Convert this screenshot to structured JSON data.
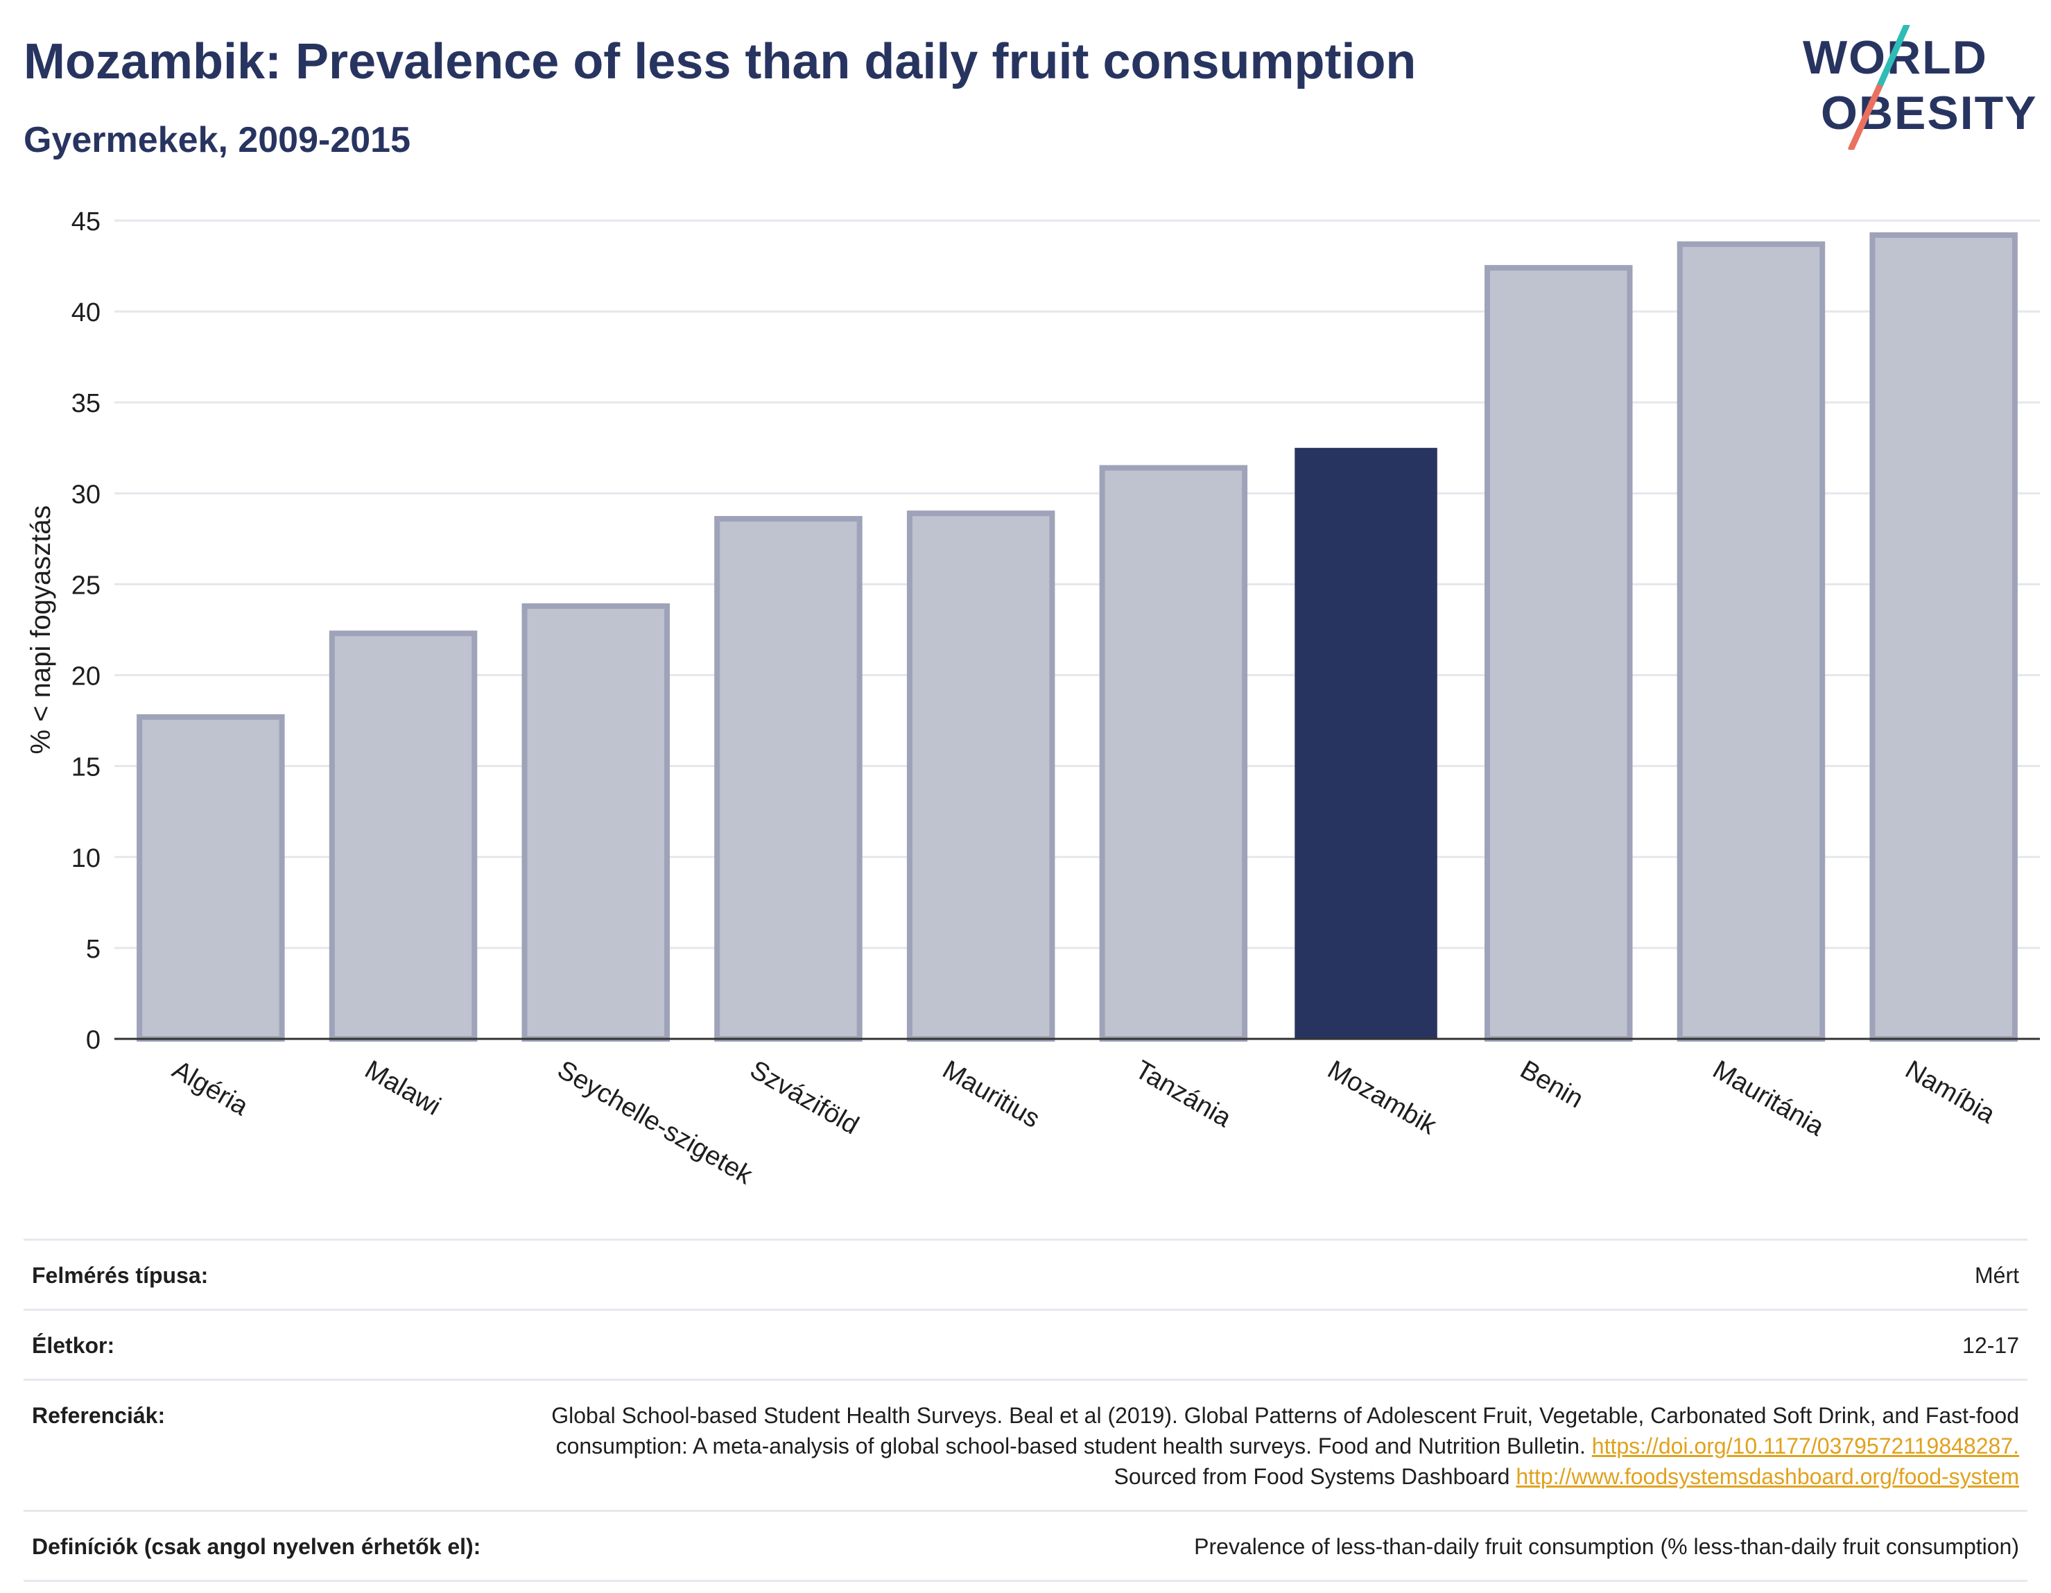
{
  "header": {
    "title": "Mozambik: Prevalence of less than daily fruit consumption",
    "subtitle": "Gyermekek, 2009-2015"
  },
  "logo": {
    "line1": "WORLD",
    "line2": "OBESITY"
  },
  "colors": {
    "highlight_bar": "#283460",
    "other_bar_fill": "#bfc2cf",
    "other_bar_stroke": "#9ea3b9",
    "text_dark": "#283460",
    "link": "#e0a21d",
    "logo_teal": "#2ebcb7",
    "logo_coral": "#e9715f"
  },
  "chart_data": {
    "type": "bar",
    "title": "Mozambik: Prevalence of less than daily fruit consumption",
    "subtitle": "Gyermekek, 2009-2015",
    "xlabel": "",
    "ylabel": "% < napi fogyasztás",
    "ylim": [
      0,
      45
    ],
    "yticks": [
      0,
      5,
      10,
      15,
      20,
      25,
      30,
      35,
      40,
      45
    ],
    "grid": true,
    "highlight": "Mozambik",
    "categories": [
      "Algéria",
      "Malawi",
      "Seychelle-szigetek",
      "Szváziföld",
      "Mauritius",
      "Tanzánia",
      "Mozambik",
      "Benin",
      "Mauritánia",
      "Namíbia"
    ],
    "values": [
      17.7,
      22.3,
      23.8,
      28.6,
      28.9,
      31.4,
      32.5,
      42.4,
      43.7,
      44.2
    ]
  },
  "info": {
    "survey_type_label": "Felmérés típusa:",
    "survey_type_value": "Mért",
    "age_label": "Életkor:",
    "age_value": "12-17",
    "references_label": "Referenciák:",
    "references_text": "Global School-based Student Health Surveys. Beal et al (2019). Global Patterns of Adolescent Fruit, Vegetable, Carbonated Soft Drink, and Fast-food consumption: A meta-analysis of global school-based student health surveys. Food and Nutrition Bulletin. ",
    "references_link1": "https://doi.org/10.1177/0379572119848287.",
    "references_mid": " Sourced from Food Systems Dashboard ",
    "references_link2": "http://www.foodsystemsdashboard.org/food-system",
    "definitions_label": "Definíciók (csak angol nyelven érhetők el):",
    "definitions_value": "Prevalence of less-than-daily fruit consumption (% less-than-daily fruit consumption)"
  }
}
